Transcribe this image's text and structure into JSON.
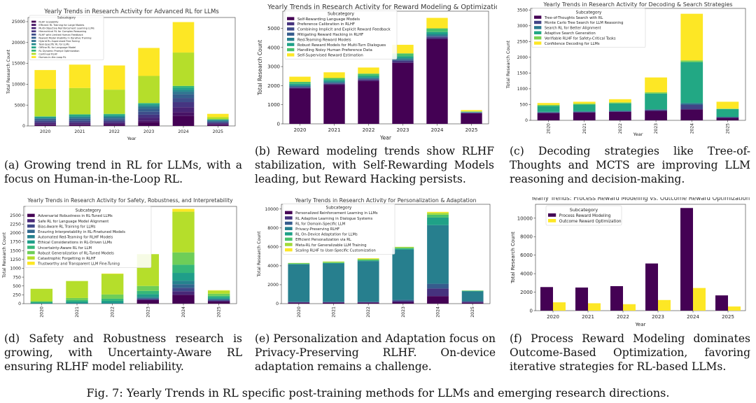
{
  "figure_caption": "Fig. 7: Yearly Trends in RL specific post-training methods for LLMs and emerging research directions.",
  "captions": {
    "a": "(a) Growing trend in RL for LLMs, with a focus on Human-in-the-Loop RL.",
    "b": "(b) Reward modeling trends show RLHF stabilization, with Self-Rewarding Models leading, but Reward Hacking persists.",
    "c": "(c) Decoding strategies like Tree-of-Thoughts and MCTS are improving LLM reasoning and decision-making.",
    "d": "(d) Safety and Robustness research is growing, with Uncertainty-Aware RL ensuring RLHF model reliability.",
    "e": "(e) Personalization and Adaptation focus on Privacy-Preserving RLHF. On-device adaptation remains a challenge.",
    "f": "(f) Process Reward Modeling dominates Outcome-Based Optimization, favoring iterative strategies for RL-based LLMs."
  },
  "chart_data": [
    {
      "id": "a",
      "type": "bar",
      "stacked": true,
      "title": "Yearly Trends in Research Activity for Advanced RL for LLMs",
      "xlabel": "Year",
      "ylabel": "Total Research Count",
      "legend_title": "Subcategory",
      "ylim": [
        0,
        26000
      ],
      "yticks": [
        0,
        5000,
        10000,
        15000,
        20000,
        25000
      ],
      "rotate_xticks": false,
      "categories": [
        "2020",
        "2021",
        "2022",
        "2023",
        "2024",
        "2025"
      ],
      "series": [
        {
          "name": "RLHF Scalability",
          "color": "#440154",
          "values": [
            200,
            200,
            300,
            900,
            2400,
            300
          ]
        },
        {
          "name": "Efficient RL Training for Large Models",
          "color": "#471365",
          "values": [
            200,
            200,
            200,
            400,
            900,
            150
          ]
        },
        {
          "name": "Multi-Objective Reinforcement Learning LLMs",
          "color": "#482475",
          "values": [
            300,
            300,
            300,
            700,
            1200,
            150
          ]
        },
        {
          "name": "Hierarchical RL for Complex Reasoning",
          "color": "#453581",
          "values": [
            300,
            300,
            300,
            700,
            1200,
            150
          ]
        },
        {
          "name": "RLHF with Limited Human Feedback",
          "color": "#3d4d8a",
          "values": [
            300,
            300,
            300,
            700,
            1000,
            150
          ]
        },
        {
          "name": "Reward Model Stability in Iterative Training",
          "color": "#355f8d",
          "values": [
            300,
            400,
            400,
            700,
            900,
            200
          ]
        },
        {
          "name": "Hybrid RL-Supervised Fine-Tuning",
          "color": "#2c728e",
          "values": [
            200,
            300,
            300,
            500,
            600,
            150
          ]
        },
        {
          "name": "Task-Specific RL for LLMs",
          "color": "#238a8d",
          "values": [
            200,
            300,
            300,
            400,
            500,
            150
          ]
        },
        {
          "name": "Offline RL for Language Model",
          "color": "#20a386",
          "values": [
            200,
            300,
            300,
            300,
            500,
            100
          ]
        },
        {
          "name": "RL Dynamic Prompt Optimization",
          "color": "#35b779",
          "values": [
            100,
            200,
            200,
            200,
            400,
            100
          ]
        },
        {
          "name": "Continual RLHF",
          "color": "#b5de2b",
          "values": [
            6600,
            6300,
            5800,
            6500,
            8000,
            500
          ]
        },
        {
          "name": "Human-in-the-Loop RL",
          "color": "#fde725",
          "values": [
            4500,
            5600,
            5800,
            6700,
            7300,
            800
          ]
        }
      ]
    },
    {
      "id": "b",
      "type": "bar",
      "stacked": true,
      "title": "Yearly Trends in Research Activity for Reward Modeling & Optimization",
      "xlabel": "Year",
      "ylabel": "Total Research Count",
      "legend_title": "Subcategory",
      "ylim": [
        0,
        5900
      ],
      "yticks": [
        0,
        1000,
        2000,
        3000,
        4000,
        5000
      ],
      "rotate_xticks": false,
      "categories": [
        "2020",
        "2021",
        "2022",
        "2023",
        "2024",
        "2025"
      ],
      "series": [
        {
          "name": "Self-Rewarding Language Models",
          "color": "#440154",
          "values": [
            1850,
            2050,
            2250,
            3200,
            4450,
            560
          ]
        },
        {
          "name": "Preference Calibration in RLHF",
          "color": "#46337e",
          "values": [
            50,
            50,
            60,
            80,
            80,
            20
          ]
        },
        {
          "name": "Combining Implicit and Explicit Reward Feedback",
          "color": "#3e4a89",
          "values": [
            30,
            30,
            30,
            40,
            40,
            10
          ]
        },
        {
          "name": "Mitigating Reward Hacking in RLHF",
          "color": "#365c8d",
          "values": [
            30,
            30,
            30,
            40,
            40,
            10
          ]
        },
        {
          "name": "Red-Teaming Reward Models",
          "color": "#277f8e",
          "values": [
            60,
            60,
            60,
            80,
            80,
            10
          ]
        },
        {
          "name": "Robust Reward Models for Multi-Turn Dialogues",
          "color": "#1fa187",
          "values": [
            80,
            80,
            80,
            100,
            120,
            20
          ]
        },
        {
          "name": "Handling Noisy Human Preference Data",
          "color": "#4ac16d",
          "values": [
            100,
            100,
            120,
            150,
            190,
            20
          ]
        },
        {
          "name": "Self-Supervised Reward Estimation",
          "color": "#fde725",
          "values": [
            270,
            300,
            320,
            450,
            550,
            70
          ]
        }
      ]
    },
    {
      "id": "c",
      "type": "bar",
      "stacked": true,
      "title": "Yearly Trends in Research Activity for Decoding & Search Strategies",
      "xlabel": "Year",
      "ylabel": "Total Research Count",
      "legend_title": "Subcategory",
      "ylim": [
        0,
        3550
      ],
      "yticks": [
        0,
        500,
        1000,
        1500,
        2000,
        2500,
        3000,
        3500
      ],
      "rotate_xticks": true,
      "categories": [
        "2020",
        "2021",
        "2022",
        "2023",
        "2024",
        "2025"
      ],
      "series": [
        {
          "name": "Tree-of-Thoughts Search with RL",
          "color": "#440154",
          "values": [
            230,
            250,
            270,
            300,
            350,
            80
          ]
        },
        {
          "name": "Monte Carlo Tree Search for LLM Reasoning",
          "color": "#414487",
          "values": [
            20,
            20,
            20,
            30,
            150,
            20
          ]
        },
        {
          "name": "Search RL for Better Alignment",
          "color": "#2a788e",
          "values": [
            20,
            20,
            20,
            20,
            50,
            10
          ]
        },
        {
          "name": "Adaptive Search Generation",
          "color": "#22a884",
          "values": [
            190,
            210,
            230,
            500,
            1300,
            250
          ]
        },
        {
          "name": "Verifiable RLHF for Safety-Critical Tasks",
          "color": "#7ad151",
          "values": [
            30,
            30,
            30,
            40,
            50,
            10
          ]
        },
        {
          "name": "Confidence Decoding for LLMs",
          "color": "#fde725",
          "values": [
            60,
            60,
            100,
            470,
            1480,
            220
          ]
        }
      ]
    },
    {
      "id": "d",
      "type": "bar",
      "stacked": true,
      "title": "Yearly Trends in Research Activity for Safety, Robustness, and Interpretability",
      "xlabel": "",
      "ylabel": "Total Research Count",
      "legend_title": "Subcategory",
      "ylim": [
        0,
        2750
      ],
      "yticks": [
        0,
        250,
        500,
        750,
        1000,
        1250,
        1500,
        1750,
        2000,
        2250,
        2500
      ],
      "rotate_xticks": true,
      "categories": [
        "2020",
        "2021",
        "2022",
        "2023",
        "2024",
        "2025"
      ],
      "series": [
        {
          "name": "Adversarial Robustness in RL-Tuned LLMs",
          "color": "#440154",
          "values": [
            0,
            0,
            0,
            100,
            250,
            60
          ]
        },
        {
          "name": "Safe RL for Language Model Alignment",
          "color": "#482878",
          "values": [
            0,
            0,
            0,
            20,
            100,
            20
          ]
        },
        {
          "name": "Bias-Aware RL Training for LLMs",
          "color": "#3e4989",
          "values": [
            0,
            0,
            0,
            20,
            100,
            20
          ]
        },
        {
          "name": "Ensuring Interpretability in RL-Finetuned Models",
          "color": "#31688e",
          "values": [
            0,
            0,
            0,
            20,
            100,
            20
          ]
        },
        {
          "name": "Automated Red-Teaming for RLHF Models",
          "color": "#26828e",
          "values": [
            10,
            20,
            20,
            30,
            100,
            20
          ]
        },
        {
          "name": "Ethical Considerations in RL-Driven LLMs",
          "color": "#1f9e89",
          "values": [
            20,
            40,
            60,
            80,
            220,
            40
          ]
        },
        {
          "name": "Uncertainty-Aware RL for LLM",
          "color": "#35b779",
          "values": [
            20,
            40,
            60,
            90,
            230,
            40
          ]
        },
        {
          "name": "Robust Generalization of RL-Tuned Models",
          "color": "#6ece58",
          "values": [
            20,
            60,
            120,
            140,
            350,
            60
          ]
        },
        {
          "name": "Catastrophic Forgetting in RLHF",
          "color": "#b5de2b",
          "values": [
            350,
            480,
            580,
            900,
            1150,
            90
          ]
        },
        {
          "name": "Trustworthy and Transparent LLM Fine-Tuning",
          "color": "#fde725",
          "values": [
            0,
            0,
            10,
            0,
            80,
            10
          ]
        }
      ]
    },
    {
      "id": "e",
      "type": "bar",
      "stacked": true,
      "title": "Yearly Trends in Research Activity for Personalization & Adaptation",
      "xlabel": "",
      "ylabel": "Total Research Count",
      "legend_title": "Subcategory",
      "ylim": [
        0,
        10500
      ],
      "yticks": [
        0,
        2000,
        4000,
        6000,
        8000,
        10000
      ],
      "rotate_xticks": true,
      "categories": [
        "2020",
        "2021",
        "2022",
        "2023",
        "2024",
        "2025"
      ],
      "series": [
        {
          "name": "Personalized Reinforcement Learning in LLMs",
          "color": "#440154",
          "values": [
            100,
            100,
            100,
            150,
            800,
            100
          ]
        },
        {
          "name": "RL Adaptive Learning in Dialogue Systems",
          "color": "#46327e",
          "values": [
            50,
            50,
            50,
            150,
            800,
            100
          ]
        },
        {
          "name": "RL for Domain-Specific LLM",
          "color": "#365c8d",
          "values": [
            50,
            50,
            50,
            100,
            500,
            60
          ]
        },
        {
          "name": "Privacy-Preserving RLHF",
          "color": "#277f8e",
          "values": [
            3950,
            4050,
            4300,
            5300,
            6200,
            1040
          ]
        },
        {
          "name": "RL On-Device Adaptation for LLMs",
          "color": "#1fa187",
          "values": [
            50,
            50,
            50,
            100,
            800,
            50
          ]
        },
        {
          "name": "Efficient Personalization via RL",
          "color": "#4ac16d",
          "values": [
            50,
            50,
            100,
            100,
            300,
            30
          ]
        },
        {
          "name": "Meta-RL for Generalizable LLM Training",
          "color": "#a0da39",
          "values": [
            50,
            100,
            100,
            100,
            200,
            20
          ]
        },
        {
          "name": "Scaling RLHF to User-Specific Customization",
          "color": "#fde725",
          "values": [
            0,
            0,
            50,
            0,
            100,
            0
          ]
        }
      ]
    },
    {
      "id": "f",
      "type": "bar",
      "stacked": false,
      "title": "Yearly Trends: Process Reward Modeling vs. Outcome Reward Optimization",
      "xlabel": "Year",
      "ylabel": "Total Research Count",
      "legend_title": "Subcategory",
      "ylim": [
        0,
        11500
      ],
      "yticks": [
        0,
        2000,
        4000,
        6000,
        8000,
        10000
      ],
      "rotate_xticks": false,
      "categories": [
        "2020",
        "2021",
        "2022",
        "2023",
        "2024",
        "2025"
      ],
      "series": [
        {
          "name": "Process Reward Modeling",
          "color": "#440154",
          "values": [
            2550,
            2500,
            2650,
            5100,
            11100,
            1650
          ]
        },
        {
          "name": "Outcome Reward Optimization",
          "color": "#fde725",
          "values": [
            900,
            800,
            700,
            1150,
            2450,
            450
          ]
        }
      ]
    }
  ]
}
